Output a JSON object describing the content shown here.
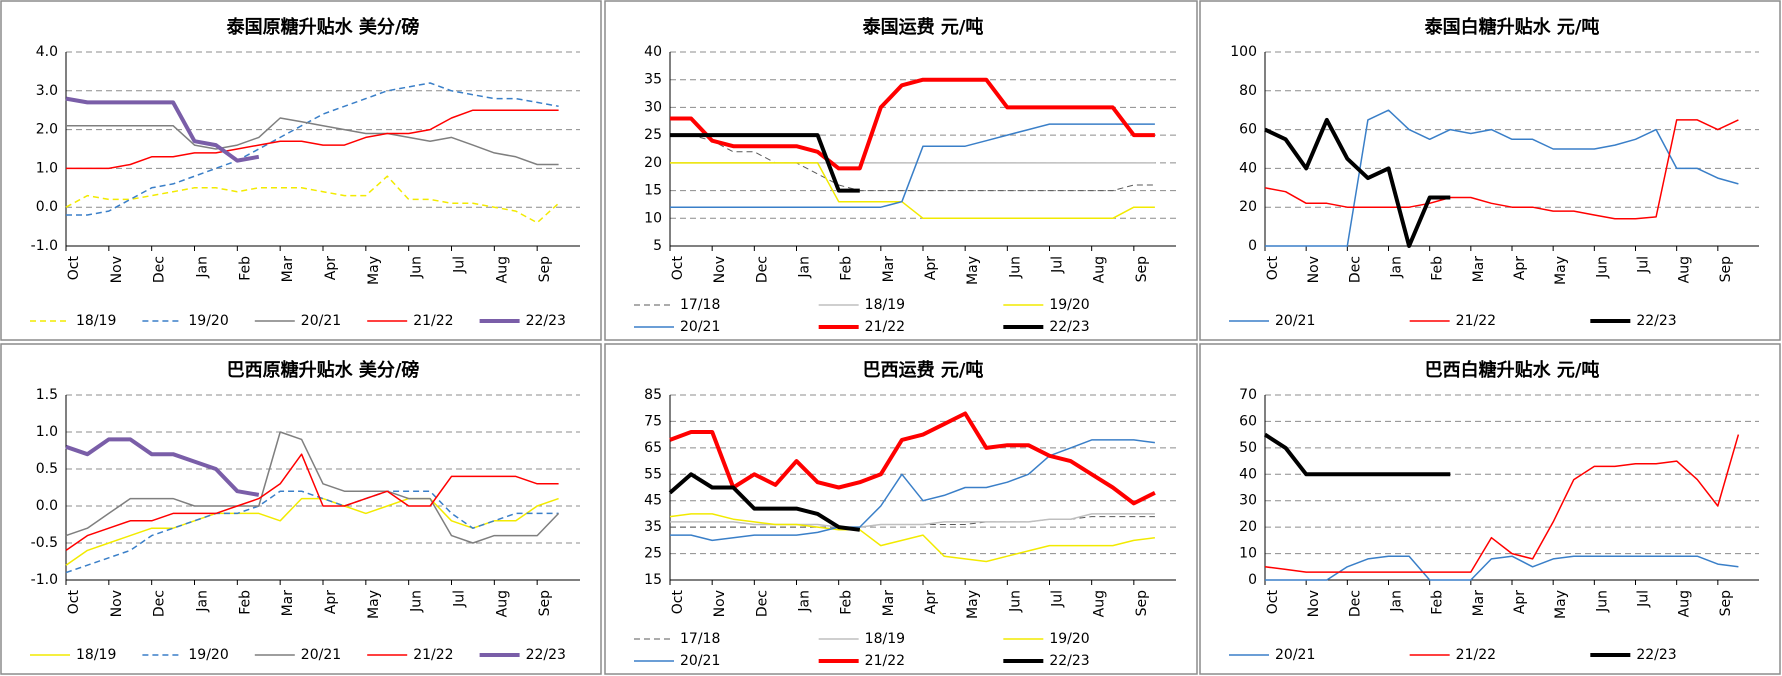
{
  "chart_data": [
    {
      "type": "line",
      "title": "泰国原糖升贴水 美分/磅",
      "categories": [
        "Oct",
        null,
        "Nov",
        null,
        "Dec",
        null,
        "Jan",
        null,
        "Feb",
        null,
        "Mar",
        null,
        "Apr",
        null,
        "May",
        null,
        "Jun",
        null,
        "Jul",
        null,
        "Aug",
        null,
        "Sep",
        null
      ],
      "ylim": [
        -1,
        4
      ],
      "yticks": [
        {
          "value": -1,
          "label": "-1.0"
        },
        {
          "value": 0,
          "label": "0.0"
        },
        {
          "value": 1,
          "label": "1.0"
        },
        {
          "value": 2,
          "label": "2.0"
        },
        {
          "value": 3,
          "label": "3.0"
        },
        {
          "value": 4,
          "label": "4.0"
        }
      ],
      "grid": true,
      "series": [
        {
          "name": "18/19",
          "color": "#f2ea00",
          "dash": true,
          "width": 1.5,
          "values": [
            0.0,
            0.3,
            0.2,
            0.2,
            0.3,
            0.4,
            0.5,
            0.5,
            0.4,
            0.5,
            0.5,
            0.5,
            0.4,
            0.3,
            0.3,
            0.8,
            0.2,
            0.2,
            0.1,
            0.1,
            0.0,
            -0.1,
            -0.4,
            0.1
          ]
        },
        {
          "name": "19/20",
          "color": "#3a7fc8",
          "dash": true,
          "width": 1.5,
          "values": [
            -0.2,
            -0.2,
            -0.1,
            0.2,
            0.5,
            0.6,
            0.8,
            1.0,
            1.2,
            1.5,
            1.8,
            2.1,
            2.4,
            2.6,
            2.8,
            3.0,
            3.1,
            3.2,
            3.0,
            2.9,
            2.8,
            2.8,
            2.7,
            2.6
          ]
        },
        {
          "name": "20/21",
          "color": "#7f7f7f",
          "width": 1.5,
          "values": [
            2.1,
            2.1,
            2.1,
            2.1,
            2.1,
            2.1,
            1.6,
            1.5,
            1.6,
            1.8,
            2.3,
            2.2,
            2.1,
            2.0,
            1.9,
            1.9,
            1.8,
            1.7,
            1.8,
            1.6,
            1.4,
            1.3,
            1.1,
            1.1
          ]
        },
        {
          "name": "21/22",
          "color": "#ff0000",
          "width": 1.5,
          "values": [
            1.0,
            1.0,
            1.0,
            1.1,
            1.3,
            1.3,
            1.4,
            1.4,
            1.5,
            1.6,
            1.7,
            1.7,
            1.6,
            1.6,
            1.8,
            1.9,
            1.9,
            2.0,
            2.3,
            2.5,
            2.5,
            2.5,
            2.5,
            2.5
          ]
        },
        {
          "name": "22/23",
          "color": "#7a5ea8",
          "width": 4,
          "values": [
            2.8,
            2.7,
            2.7,
            2.7,
            2.7,
            2.7,
            1.7,
            1.6,
            1.2,
            1.3,
            null,
            null,
            null,
            null,
            null,
            null,
            null,
            null,
            null,
            null,
            null,
            null,
            null,
            null
          ]
        }
      ]
    },
    {
      "type": "line",
      "title": "泰国运费 元/吨",
      "categories": [
        "Oct",
        null,
        "Nov",
        null,
        "Dec",
        null,
        "Jan",
        null,
        "Feb",
        null,
        "Mar",
        null,
        "Apr",
        null,
        "May",
        null,
        "Jun",
        null,
        "Jul",
        null,
        "Aug",
        null,
        "Sep",
        null
      ],
      "ylim": [
        5,
        40
      ],
      "yticks": [
        5,
        10,
        15,
        20,
        25,
        30,
        35,
        40
      ],
      "grid": true,
      "series": [
        {
          "name": "17/18",
          "color": "#595959",
          "dash": true,
          "width": 1,
          "values": [
            25,
            25,
            24,
            22,
            22,
            20,
            20,
            18,
            16,
            15,
            15,
            15,
            15,
            15,
            15,
            15,
            15,
            15,
            15,
            15,
            15,
            15,
            16,
            16
          ]
        },
        {
          "name": "18/19",
          "color": "#bfbfbf",
          "width": 1.5,
          "values": [
            20,
            20,
            20,
            20,
            20,
            20,
            20,
            20,
            20,
            20,
            20,
            20,
            20,
            20,
            20,
            20,
            20,
            20,
            20,
            20,
            20,
            20,
            20,
            20
          ]
        },
        {
          "name": "19/20",
          "color": "#f2ea00",
          "width": 1.5,
          "values": [
            20,
            20,
            20,
            20,
            20,
            20,
            20,
            20,
            13,
            13,
            13,
            13,
            10,
            10,
            10,
            10,
            10,
            10,
            10,
            10,
            10,
            10,
            12,
            12
          ]
        },
        {
          "name": "20/21",
          "color": "#3a7fc8",
          "width": 1.5,
          "values": [
            12,
            12,
            12,
            12,
            12,
            12,
            12,
            12,
            12,
            12,
            12,
            13,
            23,
            23,
            23,
            24,
            25,
            26,
            27,
            27,
            27,
            27,
            27,
            27
          ]
        },
        {
          "name": "21/22",
          "color": "#ff0000",
          "width": 4,
          "values": [
            28,
            28,
            24,
            23,
            23,
            23,
            23,
            22,
            19,
            19,
            30,
            34,
            35,
            35,
            35,
            35,
            30,
            30,
            30,
            30,
            30,
            30,
            25,
            25
          ]
        },
        {
          "name": "22/23",
          "color": "#000000",
          "width": 4,
          "values": [
            25,
            25,
            25,
            25,
            25,
            25,
            25,
            25,
            15,
            15,
            null,
            null,
            null,
            null,
            null,
            null,
            null,
            null,
            null,
            null,
            null,
            null,
            null,
            null
          ]
        }
      ]
    },
    {
      "type": "line",
      "title": "泰国白糖升贴水 元/吨",
      "categories": [
        "Oct",
        null,
        "Nov",
        null,
        "Dec",
        null,
        "Jan",
        null,
        "Feb",
        null,
        "Mar",
        null,
        "Apr",
        null,
        "May",
        null,
        "Jun",
        null,
        "Jul",
        null,
        "Aug",
        null,
        "Sep",
        null
      ],
      "ylim": [
        0,
        100
      ],
      "yticks": [
        0,
        20,
        40,
        60,
        80,
        100
      ],
      "grid": true,
      "series": [
        {
          "name": "20/21",
          "color": "#3a7fc8",
          "width": 1.5,
          "values": [
            0,
            0,
            0,
            0,
            0,
            65,
            70,
            60,
            55,
            60,
            58,
            60,
            55,
            55,
            50,
            50,
            50,
            52,
            55,
            60,
            40,
            40,
            35,
            32
          ]
        },
        {
          "name": "21/22",
          "color": "#ff0000",
          "width": 1.5,
          "values": [
            30,
            28,
            22,
            22,
            20,
            20,
            20,
            20,
            22,
            25,
            25,
            22,
            20,
            20,
            18,
            18,
            16,
            14,
            14,
            15,
            65,
            65,
            60,
            65
          ]
        },
        {
          "name": "22/23",
          "color": "#000000",
          "width": 4,
          "values": [
            60,
            55,
            40,
            65,
            45,
            35,
            40,
            0,
            25,
            25,
            null,
            null,
            null,
            null,
            null,
            null,
            null,
            null,
            null,
            null,
            null,
            null,
            null,
            null
          ]
        }
      ]
    },
    {
      "type": "line",
      "title": "巴西原糖升贴水 美分/磅",
      "categories": [
        "Oct",
        null,
        "Nov",
        null,
        "Dec",
        null,
        "Jan",
        null,
        "Feb",
        null,
        "Mar",
        null,
        "Apr",
        null,
        "May",
        null,
        "Jun",
        null,
        "Jul",
        null,
        "Aug",
        null,
        "Sep",
        null
      ],
      "ylim": [
        -1,
        1.5
      ],
      "yticks": [
        {
          "value": -1,
          "label": "-1.0"
        },
        {
          "value": -0.5,
          "label": "-0.5"
        },
        {
          "value": 0,
          "label": "0.0"
        },
        {
          "value": 0.5,
          "label": "0.5"
        },
        {
          "value": 1,
          "label": "1.0"
        },
        {
          "value": 1.5,
          "label": "1.5"
        }
      ],
      "grid": true,
      "series": [
        {
          "name": "18/19",
          "color": "#f2ea00",
          "width": 1.5,
          "values": [
            -0.8,
            -0.6,
            -0.5,
            -0.4,
            -0.3,
            -0.3,
            -0.2,
            -0.1,
            -0.1,
            -0.1,
            -0.2,
            0.1,
            0.1,
            0.0,
            -0.1,
            0.0,
            0.1,
            0.1,
            -0.2,
            -0.3,
            -0.2,
            -0.2,
            0.0,
            0.1
          ]
        },
        {
          "name": "19/20",
          "color": "#3a7fc8",
          "dash": true,
          "width": 1.5,
          "values": [
            -0.9,
            -0.8,
            -0.7,
            -0.6,
            -0.4,
            -0.3,
            -0.2,
            -0.1,
            -0.1,
            0.0,
            0.2,
            0.2,
            0.1,
            0.0,
            0.1,
            0.2,
            0.2,
            0.2,
            -0.1,
            -0.3,
            -0.2,
            -0.1,
            -0.1,
            -0.1
          ]
        },
        {
          "name": "20/21",
          "color": "#7f7f7f",
          "width": 1.5,
          "values": [
            -0.4,
            -0.3,
            -0.1,
            0.1,
            0.1,
            0.1,
            0.0,
            0.0,
            0.0,
            0.0,
            1.0,
            0.9,
            0.3,
            0.2,
            0.2,
            0.2,
            0.1,
            0.1,
            -0.4,
            -0.5,
            -0.4,
            -0.4,
            -0.4,
            -0.1
          ]
        },
        {
          "name": "21/22",
          "color": "#ff0000",
          "width": 1.5,
          "values": [
            -0.6,
            -0.4,
            -0.3,
            -0.2,
            -0.2,
            -0.1,
            -0.1,
            -0.1,
            0.0,
            0.1,
            0.3,
            0.7,
            0.0,
            0.0,
            0.1,
            0.2,
            0.0,
            0.0,
            0.4,
            0.4,
            0.4,
            0.4,
            0.3,
            0.3
          ]
        },
        {
          "name": "22/23",
          "color": "#7a5ea8",
          "width": 4,
          "values": [
            0.8,
            0.7,
            0.9,
            0.9,
            0.7,
            0.7,
            0.6,
            0.5,
            0.2,
            0.15,
            null,
            null,
            null,
            null,
            null,
            null,
            null,
            null,
            null,
            null,
            null,
            null,
            null,
            null
          ]
        }
      ]
    },
    {
      "type": "line",
      "title": "巴西运费 元/吨",
      "categories": [
        "Oct",
        null,
        "Nov",
        null,
        "Dec",
        null,
        "Jan",
        null,
        "Feb",
        null,
        "Mar",
        null,
        "Apr",
        null,
        "May",
        null,
        "Jun",
        null,
        "Jul",
        null,
        "Aug",
        null,
        "Sep",
        null
      ],
      "ylim": [
        15,
        85
      ],
      "yticks": [
        15,
        25,
        35,
        45,
        55,
        65,
        75,
        85
      ],
      "grid": true,
      "series": [
        {
          "name": "17/18",
          "color": "#595959",
          "dash": true,
          "width": 1,
          "values": [
            35,
            35,
            35,
            35,
            35,
            35,
            35,
            35,
            35,
            35,
            36,
            36,
            36,
            36,
            36,
            37,
            37,
            37,
            38,
            38,
            39,
            39,
            39,
            39
          ]
        },
        {
          "name": "18/19",
          "color": "#bfbfbf",
          "width": 1.5,
          "values": [
            37,
            37,
            37,
            37,
            36,
            36,
            36,
            36,
            35,
            35,
            36,
            36,
            36,
            37,
            37,
            37,
            37,
            37,
            38,
            38,
            40,
            40,
            40,
            40
          ]
        },
        {
          "name": "19/20",
          "color": "#f2ea00",
          "width": 1.5,
          "values": [
            39,
            40,
            40,
            38,
            37,
            36,
            36,
            35,
            34,
            34,
            28,
            30,
            32,
            24,
            23,
            22,
            24,
            26,
            28,
            28,
            28,
            28,
            30,
            31
          ]
        },
        {
          "name": "20/21",
          "color": "#3a7fc8",
          "width": 1.5,
          "values": [
            32,
            32,
            30,
            31,
            32,
            32,
            32,
            33,
            35,
            35,
            43,
            55,
            45,
            47,
            50,
            50,
            52,
            55,
            62,
            65,
            68,
            68,
            68,
            67
          ]
        },
        {
          "name": "21/22",
          "color": "#ff0000",
          "width": 4,
          "values": [
            68,
            71,
            71,
            50,
            55,
            51,
            60,
            52,
            50,
            52,
            55,
            68,
            70,
            74,
            78,
            65,
            66,
            66,
            62,
            60,
            55,
            50,
            44,
            48
          ]
        },
        {
          "name": "22/23",
          "color": "#000000",
          "width": 4,
          "values": [
            48,
            55,
            50,
            50,
            42,
            42,
            42,
            40,
            35,
            34,
            null,
            null,
            null,
            null,
            null,
            null,
            null,
            null,
            null,
            null,
            null,
            null,
            null,
            null
          ]
        }
      ]
    },
    {
      "type": "line",
      "title": "巴西白糖升贴水 元/吨",
      "categories": [
        "Oct",
        null,
        "Nov",
        null,
        "Dec",
        null,
        "Jan",
        null,
        "Feb",
        null,
        "Mar",
        null,
        "Apr",
        null,
        "May",
        null,
        "Jun",
        null,
        "Jul",
        null,
        "Aug",
        null,
        "Sep",
        null
      ],
      "ylim": [
        0,
        70
      ],
      "yticks": [
        0,
        10,
        20,
        30,
        40,
        50,
        60,
        70
      ],
      "grid": true,
      "series": [
        {
          "name": "20/21",
          "color": "#3a7fc8",
          "width": 1.5,
          "values": [
            0,
            0,
            0,
            0,
            5,
            8,
            9,
            9,
            0,
            0,
            0,
            8,
            9,
            5,
            8,
            9,
            9,
            9,
            9,
            9,
            9,
            9,
            6,
            5
          ]
        },
        {
          "name": "21/22",
          "color": "#ff0000",
          "width": 1.5,
          "values": [
            5,
            4,
            3,
            3,
            3,
            3,
            3,
            3,
            3,
            3,
            3,
            16,
            10,
            8,
            22,
            38,
            43,
            43,
            44,
            44,
            45,
            38,
            28,
            55
          ]
        },
        {
          "name": "22/23",
          "color": "#000000",
          "width": 4,
          "values": [
            55,
            50,
            40,
            40,
            40,
            40,
            40,
            40,
            40,
            40,
            null,
            null,
            null,
            null,
            null,
            null,
            null,
            null,
            null,
            null,
            null,
            null,
            null,
            null
          ]
        }
      ]
    }
  ]
}
